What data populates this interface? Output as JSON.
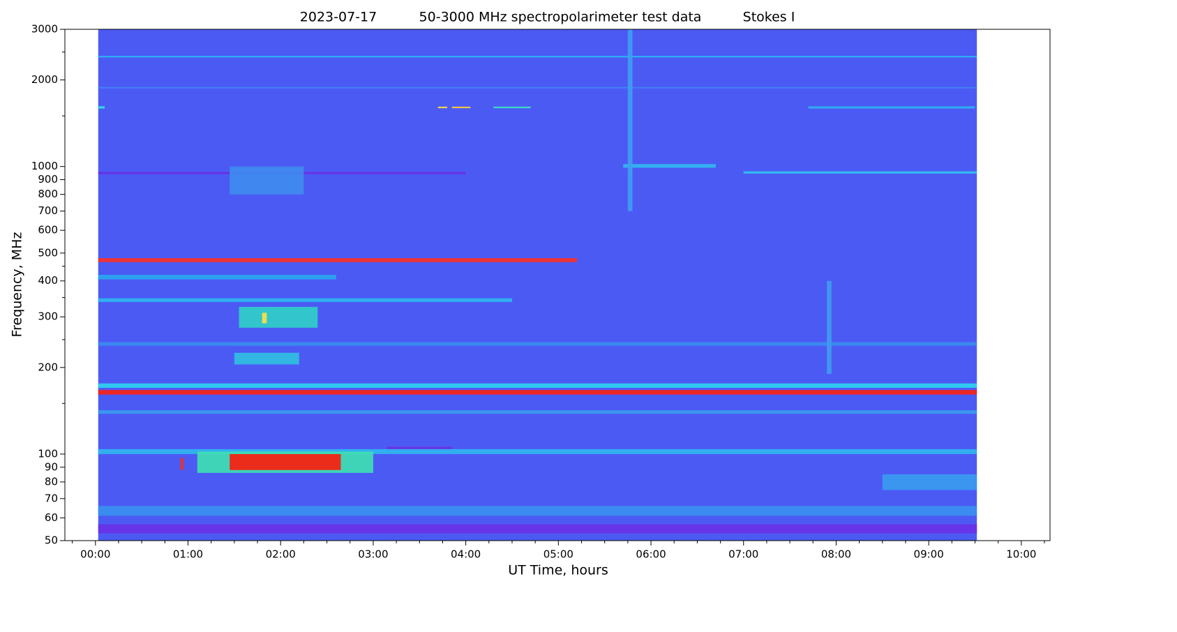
{
  "chart_data": {
    "type": "spectrogram",
    "title_date": "2023-07-17",
    "title": "50-3000 MHz spectropolarimeter test data",
    "title_mode": "Stokes I",
    "xlabel": "UT Time, hours",
    "ylabel": "Frequency, MHz",
    "yscale": "log",
    "xlim": [
      -0.33,
      10.31
    ],
    "ylim": [
      50,
      3000
    ],
    "xticks": [
      {
        "value": 0,
        "label": "00:00"
      },
      {
        "value": 1,
        "label": "01:00"
      },
      {
        "value": 2,
        "label": "02:00"
      },
      {
        "value": 3,
        "label": "03:00"
      },
      {
        "value": 4,
        "label": "04:00"
      },
      {
        "value": 5,
        "label": "05:00"
      },
      {
        "value": 6,
        "label": "06:00"
      },
      {
        "value": 7,
        "label": "07:00"
      },
      {
        "value": 8,
        "label": "08:00"
      },
      {
        "value": 9,
        "label": "09:00"
      },
      {
        "value": 10,
        "label": "10:00"
      }
    ],
    "xminorticks": [
      -0.25,
      0.25,
      0.5,
      0.75,
      1.25,
      1.5,
      1.75,
      2.25,
      2.5,
      2.75,
      3.25,
      3.5,
      3.75,
      4.25,
      4.5,
      4.75,
      5.25,
      5.5,
      5.75,
      6.25,
      6.5,
      6.75,
      7.25,
      7.5,
      7.75,
      8.25,
      8.5,
      8.75,
      9.25,
      9.5,
      9.75,
      10.25
    ],
    "yticks": [
      50,
      60,
      70,
      80,
      90,
      100,
      200,
      300,
      400,
      500,
      600,
      700,
      800,
      900,
      1000,
      2000,
      3000
    ],
    "yminorticks": [
      150,
      250,
      350,
      450,
      1500,
      2500
    ],
    "background": {
      "x": [
        0.03,
        9.52
      ],
      "color": "#4c5af4"
    },
    "features": [
      {
        "x": [
          0.03,
          9.52
        ],
        "freq": [
          2395,
          2425
        ],
        "color": "#2ab8f0"
      },
      {
        "x": [
          0.03,
          9.52
        ],
        "freq": [
          1870,
          1890
        ],
        "color": "#3f86f2"
      },
      {
        "x": [
          0.03,
          0.1
        ],
        "freq": [
          1590,
          1620
        ],
        "color": "#2fe0e0"
      },
      {
        "x": [
          3.7,
          3.8
        ],
        "freq": [
          1595,
          1615
        ],
        "color": "#ffe040"
      },
      {
        "x": [
          3.85,
          4.05
        ],
        "freq": [
          1595,
          1615
        ],
        "color": "#ffd030"
      },
      {
        "x": [
          4.3,
          4.7
        ],
        "freq": [
          1595,
          1615
        ],
        "color": "#3ee8c0"
      },
      {
        "x": [
          7.7,
          9.5
        ],
        "freq": [
          1590,
          1620
        ],
        "color": "#30b0f0"
      },
      {
        "x": [
          0.03,
          4.0
        ],
        "freq": [
          940,
          958
        ],
        "color": "#6a30e6"
      },
      {
        "x": [
          7.0,
          9.52
        ],
        "freq": [
          945,
          962
        ],
        "color": "#30c8f0"
      },
      {
        "x": [
          5.7,
          6.7
        ],
        "freq": [
          990,
          1020
        ],
        "color": "#30b8f0"
      },
      {
        "x": [
          5.75,
          5.8
        ],
        "freq": [
          700,
          3000
        ],
        "color": "#3fa0f0"
      },
      {
        "x": [
          1.45,
          2.25
        ],
        "freq": [
          800,
          1000
        ],
        "color": "#3f8cf0"
      },
      {
        "x": [
          0.03,
          5.2
        ],
        "freq": [
          465,
          480
        ],
        "color": "#ff3020"
      },
      {
        "x": [
          0.03,
          2.6
        ],
        "freq": [
          405,
          420
        ],
        "color": "#2aa8f0"
      },
      {
        "x": [
          0.03,
          4.5
        ],
        "freq": [
          338,
          348
        ],
        "color": "#30b8f0"
      },
      {
        "x": [
          0.03,
          9.52
        ],
        "freq": [
          238,
          245
        ],
        "color": "#3a8cf0"
      },
      {
        "x": [
          1.55,
          2.4
        ],
        "freq": [
          275,
          325
        ],
        "color": "#30d0c8"
      },
      {
        "x": [
          1.8,
          1.85
        ],
        "freq": [
          285,
          310
        ],
        "color": "#ffe040"
      },
      {
        "x": [
          1.5,
          2.2
        ],
        "freq": [
          205,
          225
        ],
        "color": "#30c0e0"
      },
      {
        "x": [
          7.9,
          7.95
        ],
        "freq": [
          190,
          400
        ],
        "color": "#3f9cf0"
      },
      {
        "x": [
          0.03,
          9.52
        ],
        "freq": [
          170,
          176
        ],
        "color": "#2ed6f0"
      },
      {
        "x": [
          0.03,
          9.52
        ],
        "freq": [
          161,
          167
        ],
        "color": "#ff2010"
      },
      {
        "x": [
          0.03,
          9.52
        ],
        "freq": [
          138,
          142
        ],
        "color": "#3a9cf0"
      },
      {
        "x": [
          3.15,
          3.85
        ],
        "freq": [
          104,
          106
        ],
        "color": "#6a30e6"
      },
      {
        "x": [
          0.03,
          9.52
        ],
        "freq": [
          100,
          104
        ],
        "color": "#30b8f0"
      },
      {
        "x": [
          1.1,
          3.0
        ],
        "freq": [
          86,
          102
        ],
        "color": "#3ee0b0"
      },
      {
        "x": [
          1.45,
          2.65
        ],
        "freq": [
          88,
          100
        ],
        "color": "#ff1a0a"
      },
      {
        "x": [
          0.92,
          0.95
        ],
        "freq": [
          88,
          97
        ],
        "color": "#ff2a10"
      },
      {
        "x": [
          8.5,
          9.52
        ],
        "freq": [
          75,
          85
        ],
        "color": "#3a9cf0"
      },
      {
        "x": [
          0.03,
          9.52
        ],
        "freq": [
          61,
          66
        ],
        "color": "#3a90f0"
      },
      {
        "x": [
          0.03,
          9.52
        ],
        "freq": [
          53,
          57
        ],
        "color": "#6a30e6"
      }
    ]
  }
}
